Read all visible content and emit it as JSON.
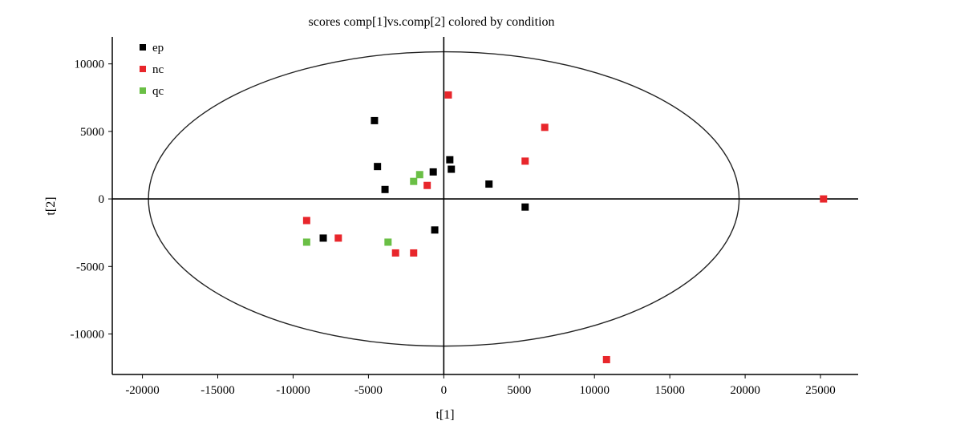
{
  "chart_data": {
    "type": "scatter",
    "title": "scores comp[1]vs.comp[2] colored by condition",
    "xlabel": "t[1]",
    "ylabel": "t[2]",
    "xlim": [
      -22000,
      27500
    ],
    "ylim": [
      -13000,
      12000
    ],
    "x_ticks": [
      -20000,
      -15000,
      -10000,
      -5000,
      0,
      5000,
      10000,
      15000,
      20000,
      25000
    ],
    "y_ticks": [
      -10000,
      -5000,
      0,
      5000,
      10000
    ],
    "x_tick_labels": [
      "-20000",
      "-15000",
      "-10000",
      "-5000",
      "0",
      "5000",
      "10000",
      "15000",
      "20000",
      "25000"
    ],
    "y_tick_labels": [
      "-10000",
      "-5000",
      "0",
      "5000",
      "10000"
    ],
    "grid": false,
    "legend_position": "top-left",
    "confidence_ellipse": {
      "cx": 0,
      "cy": 0,
      "rx": 19600,
      "ry": 10900
    },
    "series": [
      {
        "name": "ep",
        "color": "#000000",
        "points": [
          [
            -4600,
            5800
          ],
          [
            -4400,
            2400
          ],
          [
            -3900,
            700
          ],
          [
            -700,
            2000
          ],
          [
            400,
            2900
          ],
          [
            500,
            2200
          ],
          [
            3000,
            1100
          ],
          [
            5400,
            -600
          ],
          [
            -8000,
            -2900
          ],
          [
            -600,
            -2300
          ]
        ]
      },
      {
        "name": "nc",
        "color": "#e8262b",
        "points": [
          [
            300,
            7700
          ],
          [
            6700,
            5300
          ],
          [
            5400,
            2800
          ],
          [
            -1100,
            1000
          ],
          [
            -9100,
            -1600
          ],
          [
            -7000,
            -2900
          ],
          [
            -3200,
            -4000
          ],
          [
            -2000,
            -4000
          ],
          [
            25200,
            0
          ],
          [
            10800,
            -11900
          ]
        ]
      },
      {
        "name": "qc",
        "color": "#6abf45",
        "points": [
          [
            -1600,
            1800
          ],
          [
            -2000,
            1300
          ],
          [
            -9100,
            -3200
          ],
          [
            -3700,
            -3200
          ]
        ]
      }
    ]
  }
}
